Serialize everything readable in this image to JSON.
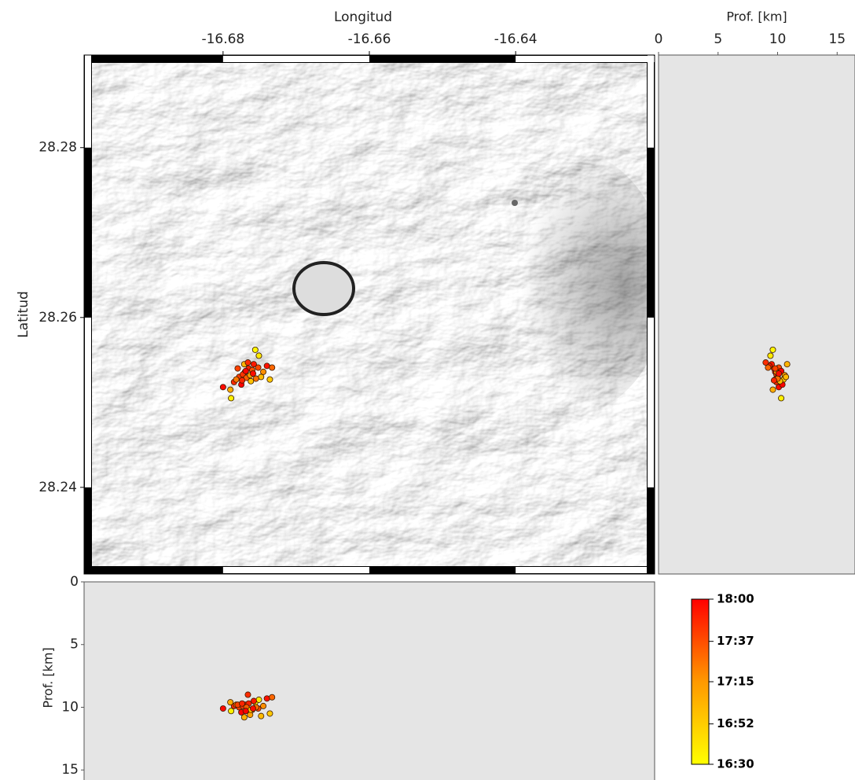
{
  "chart_data": {
    "type": "scatter",
    "x_label": "Longitud",
    "y_label": "Latitud",
    "depth_label": "Prof. [km]",
    "xlim": [
      -16.699,
      -16.621
    ],
    "xticks": [
      -16.68,
      -16.66,
      -16.64
    ],
    "ylim": [
      28.2298,
      28.2909
    ],
    "yticks": [
      28.24,
      28.26,
      28.28
    ],
    "depth_xlim": [
      0,
      16.5
    ],
    "depth_xticks": [
      0,
      5,
      10,
      15
    ],
    "depth_ylim": [
      0,
      15.8
    ],
    "depth_yticks": [
      0,
      5,
      10,
      15
    ],
    "x": [
      -16.6756,
      -16.6751,
      -16.6789,
      -16.6736,
      -16.68,
      -16.6785,
      -16.6778,
      -16.677,
      -16.6765,
      -16.676,
      -16.6773,
      -16.6768,
      -16.6775,
      -16.6782,
      -16.6758,
      -16.6752,
      -16.6745,
      -16.674,
      -16.6733,
      -16.6763,
      -16.6771,
      -16.679,
      -16.6762,
      -16.6748,
      -16.6766,
      -16.678,
      -16.6755,
      -16.6769,
      -16.6774,
      -16.6759
    ],
    "y": [
      28.2562,
      28.2555,
      28.2505,
      28.2527,
      28.2518,
      28.2524,
      28.253,
      28.2536,
      28.254,
      28.2538,
      28.2533,
      28.2529,
      28.2521,
      28.2527,
      28.2545,
      28.2541,
      28.2536,
      28.2543,
      28.2541,
      28.2532,
      28.2545,
      28.2515,
      28.2525,
      28.253,
      28.2547,
      28.254,
      28.2528,
      28.2537,
      28.2526,
      28.2534
    ],
    "depth": [
      9.6,
      9.4,
      10.3,
      10.5,
      10.1,
      9.9,
      10.0,
      9.8,
      9.7,
      10.2,
      9.9,
      10.0,
      10.4,
      9.8,
      9.5,
      10.1,
      9.9,
      9.3,
      9.2,
      10.6,
      10.8,
      9.6,
      10.2,
      10.7,
      9.0,
      9.8,
      10.0,
      10.3,
      9.7,
      10.1
    ],
    "time": [
      16.55,
      16.65,
      16.6,
      16.9,
      17.95,
      17.8,
      17.7,
      17.9,
      17.85,
      17.6,
      17.75,
      17.55,
      17.98,
      17.4,
      17.88,
      17.65,
      17.3,
      17.92,
      17.5,
      17.2,
      17.05,
      17.1,
      16.95,
      17.0,
      17.78,
      17.68,
      17.45,
      17.99,
      17.82,
      17.94
    ],
    "colorbar": {
      "lim": [
        16.5,
        18.0
      ],
      "colors": [
        "#ffff00",
        "#ff9900",
        "#ff0000"
      ],
      "ticks": [
        {
          "value": 16.5,
          "label": "16:30"
        },
        {
          "value": 16.8667,
          "label": "16:52"
        },
        {
          "value": 17.25,
          "label": "17:15"
        },
        {
          "value": 17.6167,
          "label": "17:37"
        },
        {
          "value": 18.0,
          "label": "18:00"
        }
      ]
    }
  }
}
